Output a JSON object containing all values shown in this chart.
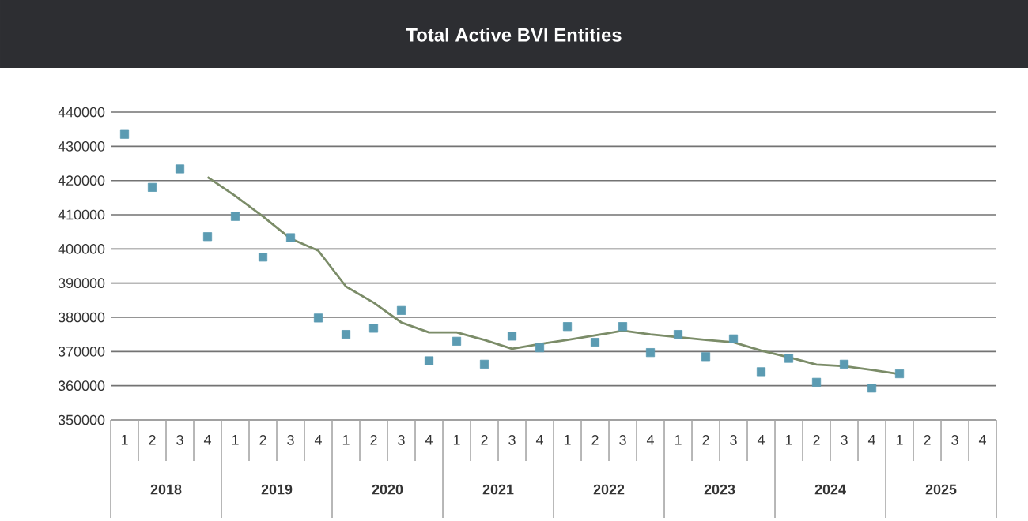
{
  "chart_data": {
    "type": "scatter",
    "title": "Total Active BVI Entities",
    "categories": [
      "1",
      "2",
      "3",
      "4",
      "1",
      "2",
      "3",
      "4",
      "1",
      "2",
      "3",
      "4",
      "1",
      "2",
      "3",
      "4",
      "1",
      "2",
      "3",
      "4",
      "1",
      "2",
      "3",
      "4",
      "1",
      "2",
      "3",
      "4",
      "1",
      "2",
      "3",
      "4"
    ],
    "annotations": [
      "2018",
      "2019",
      "2020",
      "2021",
      "2022",
      "2023",
      "2024",
      "2025"
    ],
    "series": [
      {
        "marker": "square",
        "color": "#5b9bb2",
        "values": [
          433500,
          418000,
          423400,
          403600,
          409500,
          397600,
          403300,
          379800,
          375000,
          376800,
          382000,
          367300,
          373000,
          366300,
          374500,
          371100,
          377300,
          372700,
          377300,
          369700,
          375000,
          368500,
          373700,
          364100,
          368000,
          361000,
          366300,
          359300,
          363500,
          null,
          null,
          null
        ]
      },
      {
        "type": "line",
        "marker": "none",
        "color": "#7b8c68",
        "values": [
          null,
          null,
          null,
          421000,
          415500,
          409500,
          403000,
          399500,
          389000,
          384300,
          378500,
          375600,
          375600,
          373400,
          370800,
          372200,
          373400,
          374700,
          376100,
          375000,
          374200,
          373400,
          372700,
          370300,
          368300,
          366200,
          365700,
          364600,
          363400,
          null,
          null,
          null
        ]
      }
    ],
    "ylim": [
      350000,
      440000
    ],
    "yticks": [
      350000,
      360000,
      370000,
      380000,
      390000,
      400000,
      410000,
      420000,
      430000,
      440000
    ],
    "grid": "y"
  }
}
